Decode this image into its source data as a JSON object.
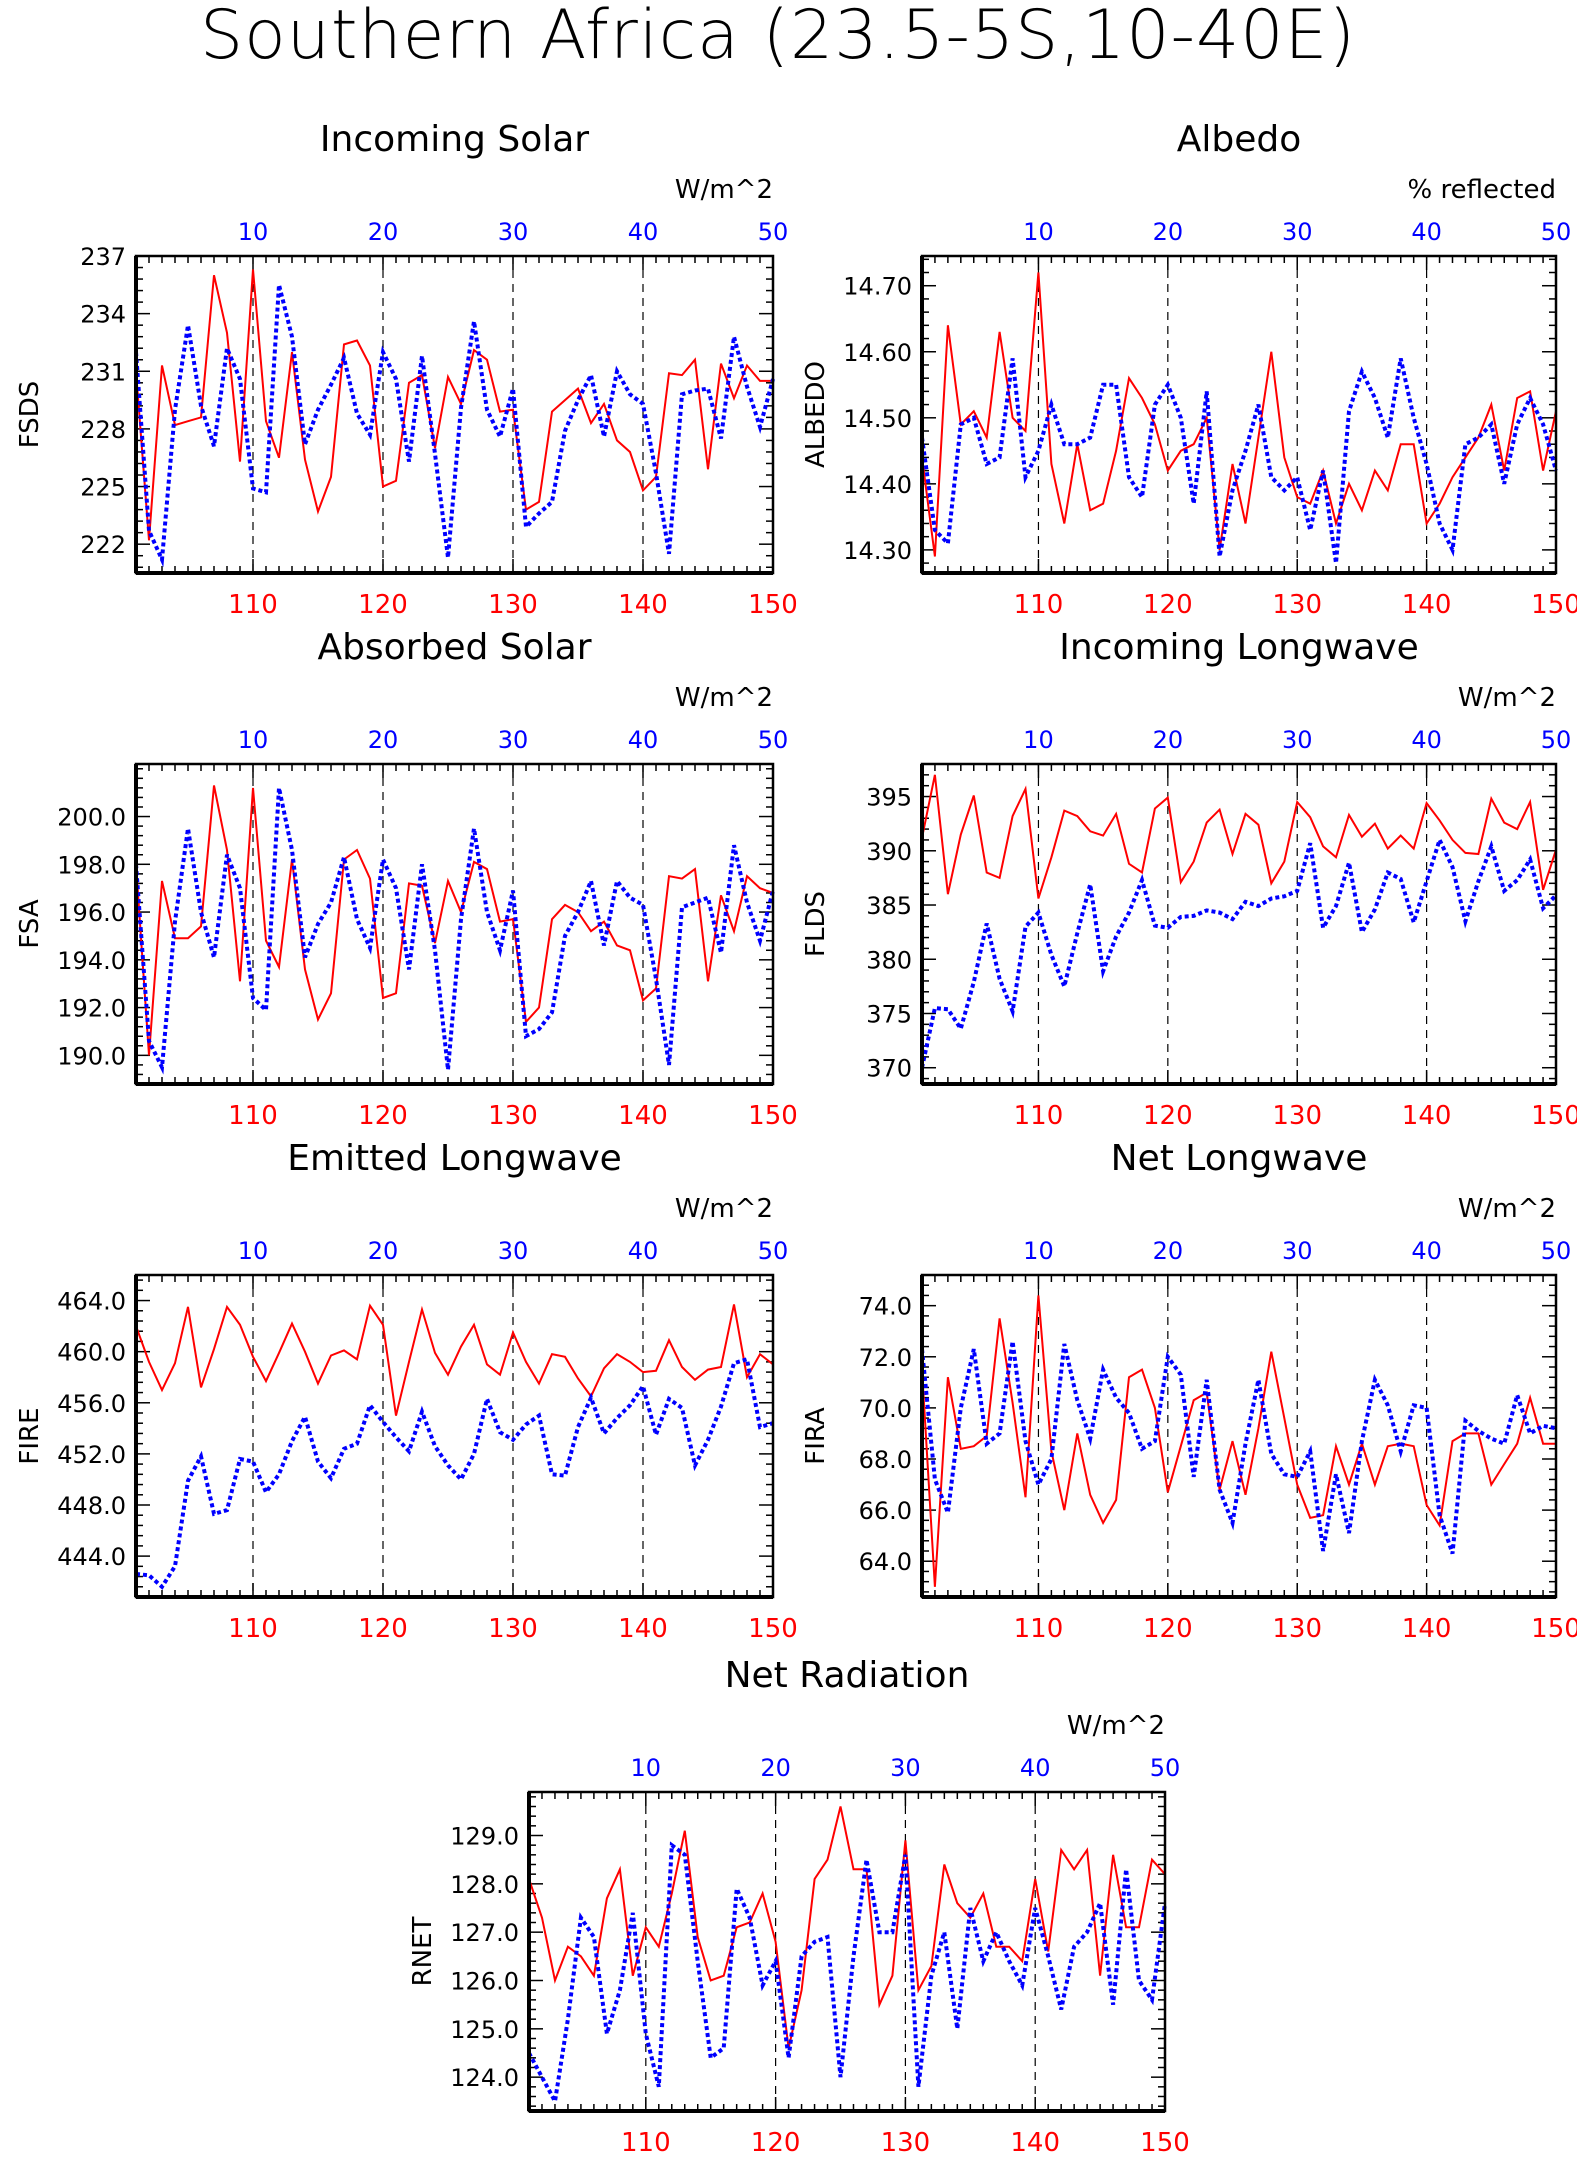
{
  "page_title": "Southern Africa (23.5-5S,10-40E)",
  "colors": {
    "red": "#ff0000",
    "blue": "#0000ff",
    "axis": "#000000",
    "grid": "#000000"
  },
  "chart_data": [
    {
      "type": "line",
      "title": "Incoming Solar",
      "ylabel": "FSDS",
      "units": "W/m^2",
      "bottom_ticks": [
        "110",
        "120",
        "130",
        "140",
        "150"
      ],
      "top_ticks": [
        "10",
        "20",
        "30",
        "40",
        "50"
      ],
      "ylim": [
        220.5,
        237
      ],
      "yticks": [
        222,
        225,
        228,
        231,
        234,
        237
      ],
      "ytick_labels": [
        "222",
        "225",
        "228",
        "231",
        "234",
        "237"
      ],
      "series": [
        {
          "color": "red",
          "style": "solid",
          "x_start": 101,
          "values": [
            231.0,
            222.2,
            231.3,
            228.2,
            228.4,
            228.6,
            236.0,
            233.0,
            226.3,
            236.3,
            228.4,
            226.5,
            232.0,
            226.4,
            223.7,
            225.5,
            232.4,
            232.6,
            231.3,
            225.0,
            225.3,
            230.4,
            230.8,
            227.0,
            230.7,
            229.3,
            232.1,
            231.6,
            228.9,
            229.0,
            223.8,
            224.2,
            228.9,
            229.5,
            230.1,
            228.3,
            229.3,
            227.4,
            226.8,
            224.8,
            225.5,
            230.9,
            230.8,
            231.6,
            225.9,
            231.4,
            229.6,
            231.3,
            230.5,
            230.5
          ]
        },
        {
          "color": "blue",
          "style": "dotted",
          "x_start": 101,
          "values": [
            232.0,
            222.7,
            221.2,
            229.0,
            233.4,
            229.2,
            227.1,
            232.2,
            230.6,
            224.9,
            224.7,
            235.5,
            232.8,
            227.2,
            229.0,
            230.3,
            231.7,
            228.8,
            227.7,
            232.0,
            230.6,
            226.3,
            231.8,
            226.7,
            221.3,
            229.1,
            233.6,
            229.0,
            227.6,
            230.1,
            222.9,
            223.6,
            224.2,
            227.9,
            229.5,
            230.8,
            227.6,
            231.0,
            229.8,
            229.3,
            225.7,
            221.5,
            229.8,
            230.0,
            230.1,
            227.5,
            232.8,
            230.2,
            228.1,
            230.6
          ]
        }
      ]
    },
    {
      "type": "line",
      "title": "Albedo",
      "ylabel": "ALBEDO",
      "units": "% reflected",
      "bottom_ticks": [
        "110",
        "120",
        "130",
        "140",
        "150"
      ],
      "top_ticks": [
        "10",
        "20",
        "30",
        "40",
        "50"
      ],
      "ylim": [
        14.265,
        14.745
      ],
      "yticks": [
        14.3,
        14.4,
        14.5,
        14.6,
        14.7
      ],
      "ytick_labels": [
        "14.30",
        "14.40",
        "14.50",
        "14.60",
        "14.70"
      ],
      "series": [
        {
          "color": "red",
          "style": "solid",
          "x_start": 101,
          "values": [
            14.44,
            14.29,
            14.64,
            14.49,
            14.51,
            14.47,
            14.63,
            14.5,
            14.48,
            14.72,
            14.43,
            14.34,
            14.46,
            14.36,
            14.37,
            14.45,
            14.56,
            14.53,
            14.49,
            14.42,
            14.45,
            14.46,
            14.5,
            14.3,
            14.43,
            14.34,
            14.47,
            14.6,
            14.44,
            14.38,
            14.37,
            14.42,
            14.34,
            14.4,
            14.36,
            14.42,
            14.39,
            14.46,
            14.46,
            14.34,
            14.37,
            14.41,
            14.44,
            14.47,
            14.52,
            14.42,
            14.53,
            14.54,
            14.42,
            14.51
          ]
        },
        {
          "color": "blue",
          "style": "dotted",
          "x_start": 101,
          "values": [
            14.47,
            14.33,
            14.31,
            14.49,
            14.5,
            14.43,
            14.44,
            14.59,
            14.41,
            14.45,
            14.52,
            14.46,
            14.46,
            14.47,
            14.55,
            14.55,
            14.41,
            14.38,
            14.52,
            14.55,
            14.5,
            14.37,
            14.54,
            14.29,
            14.39,
            14.45,
            14.52,
            14.41,
            14.39,
            14.41,
            14.33,
            14.42,
            14.28,
            14.51,
            14.57,
            14.53,
            14.47,
            14.59,
            14.5,
            14.43,
            14.34,
            14.3,
            14.46,
            14.47,
            14.49,
            14.4,
            14.49,
            14.53,
            14.49,
            14.42
          ]
        }
      ]
    },
    {
      "type": "line",
      "title": "Absorbed Solar",
      "ylabel": "FSA",
      "units": "W/m^2",
      "bottom_ticks": [
        "110",
        "120",
        "130",
        "140",
        "150"
      ],
      "top_ticks": [
        "10",
        "20",
        "30",
        "40",
        "50"
      ],
      "ylim": [
        188.8,
        202.2
      ],
      "yticks": [
        190,
        192,
        194,
        196,
        198,
        200
      ],
      "ytick_labels": [
        "190.0",
        "192.0",
        "194.0",
        "196.0",
        "198.0",
        "200.0"
      ],
      "series": [
        {
          "color": "red",
          "style": "solid",
          "x_start": 101,
          "values": [
            198.0,
            190.0,
            197.3,
            194.9,
            194.9,
            195.4,
            201.3,
            198.6,
            193.1,
            201.2,
            194.8,
            193.7,
            198.2,
            193.6,
            191.5,
            192.6,
            198.2,
            198.6,
            197.4,
            192.4,
            192.6,
            197.2,
            197.1,
            194.7,
            197.3,
            196.0,
            198.1,
            197.8,
            195.6,
            195.7,
            191.4,
            192.0,
            195.7,
            196.3,
            196.0,
            195.2,
            195.6,
            194.6,
            194.4,
            192.3,
            192.8,
            197.5,
            197.4,
            197.8,
            193.1,
            196.7,
            195.2,
            197.5,
            197.0,
            196.8
          ]
        },
        {
          "color": "blue",
          "style": "dotted",
          "x_start": 101,
          "values": [
            198.0,
            190.6,
            189.5,
            195.6,
            199.5,
            196.0,
            194.1,
            198.4,
            197.0,
            192.4,
            191.9,
            201.2,
            198.6,
            194.1,
            195.5,
            196.4,
            198.3,
            195.7,
            194.5,
            198.2,
            197.0,
            193.6,
            198.0,
            194.4,
            189.4,
            195.7,
            199.5,
            196.0,
            194.4,
            196.9,
            190.8,
            191.1,
            191.8,
            195.0,
            196.0,
            197.3,
            194.6,
            197.3,
            196.6,
            196.3,
            193.2,
            189.6,
            196.2,
            196.4,
            196.6,
            194.3,
            198.8,
            196.4,
            194.8,
            196.9
          ]
        }
      ]
    },
    {
      "type": "line",
      "title": "Incoming Longwave",
      "ylabel": "FLDS",
      "units": "W/m^2",
      "bottom_ticks": [
        "110",
        "120",
        "130",
        "140",
        "150"
      ],
      "top_ticks": [
        "10",
        "20",
        "30",
        "40",
        "50"
      ],
      "ylim": [
        368.5,
        398
      ],
      "yticks": [
        370,
        375,
        380,
        385,
        390,
        395
      ],
      "ytick_labels": [
        "370",
        "375",
        "380",
        "385",
        "390",
        "395"
      ],
      "series": [
        {
          "color": "red",
          "style": "solid",
          "x_start": 101,
          "values": [
            391.2,
            397.0,
            386.0,
            391.5,
            395.1,
            388.0,
            387.5,
            393.2,
            395.7,
            385.6,
            389.4,
            393.7,
            393.2,
            391.8,
            391.4,
            393.4,
            388.8,
            388.0,
            393.9,
            394.9,
            387.1,
            389.0,
            392.6,
            393.8,
            389.7,
            393.4,
            392.4,
            387.0,
            389.0,
            394.5,
            393.1,
            390.4,
            389.4,
            393.3,
            391.3,
            392.5,
            390.2,
            391.4,
            390.2,
            394.4,
            392.8,
            391.0,
            389.8,
            389.7,
            394.8,
            392.6,
            392.0,
            394.5,
            386.4,
            390.1
          ]
        },
        {
          "color": "blue",
          "style": "dotted",
          "x_start": 101,
          "values": [
            370.0,
            375.5,
            375.4,
            373.6,
            377.9,
            383.3,
            378.2,
            375.2,
            383.0,
            384.3,
            380.4,
            377.5,
            382.4,
            386.9,
            378.9,
            382.1,
            384.3,
            387.3,
            383.1,
            382.9,
            383.9,
            384.0,
            384.5,
            384.3,
            383.7,
            385.3,
            384.9,
            385.6,
            385.8,
            386.3,
            390.7,
            382.9,
            384.9,
            388.9,
            382.5,
            384.6,
            388.0,
            387.4,
            383.4,
            387.2,
            391.0,
            388.5,
            383.5,
            387.2,
            390.4,
            386.3,
            387.3,
            389.2,
            384.7,
            385.9
          ]
        }
      ]
    },
    {
      "type": "line",
      "title": "Emitted Longwave",
      "ylabel": "FIRE",
      "units": "W/m^2",
      "bottom_ticks": [
        "110",
        "120",
        "130",
        "140",
        "150"
      ],
      "top_ticks": [
        "10",
        "20",
        "30",
        "40",
        "50"
      ],
      "ylim": [
        440.8,
        466
      ],
      "yticks": [
        444,
        448,
        452,
        456,
        460,
        464
      ],
      "ytick_labels": [
        "444.0",
        "448.0",
        "452.0",
        "456.0",
        "460.0",
        "464.0"
      ],
      "series": [
        {
          "color": "red",
          "style": "solid",
          "x_start": 101,
          "values": [
            462.0,
            459.2,
            457.0,
            459.1,
            463.5,
            457.2,
            460.2,
            463.5,
            462.1,
            459.6,
            457.7,
            459.9,
            462.2,
            460.0,
            457.5,
            459.7,
            460.1,
            459.4,
            463.6,
            462.1,
            455.0,
            459.2,
            463.3,
            459.9,
            458.2,
            460.4,
            462.1,
            459.0,
            458.2,
            461.5,
            459.2,
            457.5,
            459.8,
            459.6,
            457.9,
            456.5,
            458.7,
            459.8,
            459.2,
            458.4,
            458.5,
            460.9,
            458.8,
            457.8,
            458.6,
            458.8,
            463.7,
            458.0,
            459.8,
            459.0
          ]
        },
        {
          "color": "blue",
          "style": "dotted",
          "x_start": 101,
          "values": [
            442.6,
            442.5,
            441.6,
            443.2,
            449.9,
            451.8,
            447.3,
            447.6,
            451.6,
            451.4,
            449.0,
            450.4,
            453.0,
            454.9,
            451.4,
            450.1,
            452.4,
            452.8,
            455.8,
            454.5,
            453.3,
            452.2,
            455.3,
            452.6,
            451.1,
            450.0,
            452.0,
            456.3,
            453.7,
            453.1,
            454.3,
            455.0,
            450.4,
            450.3,
            454.1,
            456.4,
            453.6,
            454.8,
            455.8,
            457.3,
            453.5,
            456.3,
            455.6,
            451.1,
            453.1,
            455.7,
            459.1,
            459.4,
            454.1,
            454.4
          ]
        }
      ]
    },
    {
      "type": "line",
      "title": "Net Longwave",
      "ylabel": "FIRA",
      "units": "W/m^2",
      "bottom_ticks": [
        "110",
        "120",
        "130",
        "140",
        "150"
      ],
      "top_ticks": [
        "10",
        "20",
        "30",
        "40",
        "50"
      ],
      "ylim": [
        62.6,
        75.2
      ],
      "yticks": [
        64,
        66,
        68,
        70,
        72,
        74
      ],
      "ytick_labels": [
        "64.0",
        "66.0",
        "68.0",
        "70.0",
        "72.0",
        "74.0"
      ],
      "series": [
        {
          "color": "red",
          "style": "solid",
          "x_start": 101,
          "values": [
            71.5,
            63.0,
            71.2,
            68.4,
            68.5,
            68.9,
            73.5,
            70.2,
            66.5,
            74.4,
            68.3,
            66.0,
            69.0,
            66.6,
            65.5,
            66.4,
            71.2,
            71.5,
            70.0,
            66.7,
            68.5,
            70.3,
            70.6,
            66.8,
            68.7,
            66.6,
            69.2,
            72.2,
            69.6,
            67.0,
            65.7,
            65.8,
            68.5,
            67.0,
            68.6,
            67.0,
            68.5,
            68.6,
            68.5,
            66.2,
            65.4,
            68.7,
            69.0,
            69.0,
            67.0,
            67.8,
            68.6,
            70.4,
            68.6,
            68.6
          ]
        },
        {
          "color": "blue",
          "style": "dotted",
          "x_start": 101,
          "values": [
            72.3,
            67.2,
            65.9,
            70.0,
            72.3,
            68.6,
            69.0,
            72.6,
            68.7,
            67.0,
            68.0,
            72.5,
            70.3,
            68.8,
            71.5,
            70.4,
            69.8,
            68.4,
            68.7,
            72.0,
            71.3,
            67.3,
            71.1,
            66.8,
            65.5,
            68.6,
            71.1,
            68.2,
            67.4,
            67.3,
            68.3,
            64.4,
            67.4,
            65.1,
            68.7,
            71.1,
            70.1,
            68.3,
            70.1,
            70.0,
            65.8,
            64.3,
            69.5,
            69.1,
            68.8,
            68.6,
            70.5,
            69.0,
            69.3,
            69.2
          ]
        }
      ]
    },
    {
      "type": "line",
      "title": "Net Radiation",
      "ylabel": "RNET",
      "units": "W/m^2",
      "bottom_ticks": [
        "110",
        "120",
        "130",
        "140",
        "150"
      ],
      "top_ticks": [
        "10",
        "20",
        "30",
        "40",
        "50"
      ],
      "ylim": [
        123.3,
        129.9
      ],
      "yticks": [
        124,
        125,
        126,
        127,
        128,
        129
      ],
      "ytick_labels": [
        "124.0",
        "125.0",
        "126.0",
        "127.0",
        "128.0",
        "129.0"
      ],
      "series": [
        {
          "color": "red",
          "style": "solid",
          "x_start": 101,
          "values": [
            128.1,
            127.3,
            126.0,
            126.7,
            126.5,
            126.1,
            127.7,
            128.3,
            126.1,
            127.1,
            126.7,
            127.8,
            129.1,
            126.9,
            126.0,
            126.1,
            127.1,
            127.2,
            127.8,
            126.8,
            124.6,
            125.8,
            128.1,
            128.5,
            129.6,
            128.3,
            128.3,
            125.5,
            126.1,
            128.9,
            125.8,
            126.3,
            128.4,
            127.6,
            127.3,
            127.8,
            126.7,
            126.7,
            126.4,
            128.1,
            126.6,
            128.7,
            128.3,
            128.7,
            126.1,
            128.6,
            127.1,
            127.1,
            128.5,
            128.2
          ]
        },
        {
          "color": "blue",
          "style": "dotted",
          "x_start": 101,
          "values": [
            124.5,
            124.0,
            123.5,
            125.2,
            127.3,
            126.9,
            124.9,
            125.8,
            127.4,
            124.9,
            123.8,
            128.8,
            128.6,
            126.4,
            124.4,
            124.6,
            127.9,
            127.3,
            125.9,
            126.4,
            124.4,
            126.5,
            126.8,
            126.9,
            124.0,
            126.5,
            128.5,
            127.0,
            127.0,
            128.6,
            123.8,
            126.1,
            127.0,
            125.0,
            127.5,
            126.4,
            127.0,
            126.4,
            125.9,
            127.5,
            126.5,
            125.4,
            126.7,
            127.0,
            127.6,
            125.5,
            128.3,
            126.0,
            125.6,
            127.6
          ]
        }
      ]
    }
  ]
}
